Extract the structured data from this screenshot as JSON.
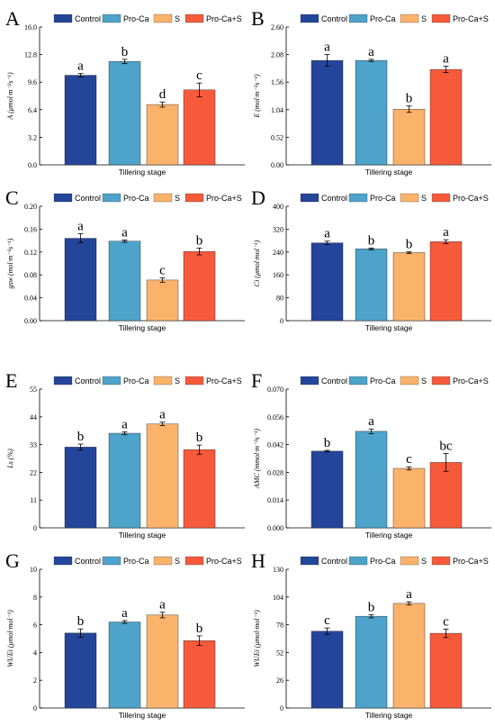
{
  "colors": {
    "Control": "#23459a",
    "Pro-Ca": "#4da3c9",
    "S": "#fbb36b",
    "Pro-Ca+S": "#f75a3a"
  },
  "chart_data": [
    {
      "type": "bar",
      "panel": "A",
      "categories": [
        "Tillering stage"
      ],
      "xlabel": "Tillering stage",
      "ylabel": "A (μmol·m⁻²s⁻¹)",
      "ylim": [
        0,
        16.0
      ],
      "yticks": [
        "0.0",
        "3.2",
        "6.4",
        "9.6",
        "12.8",
        "16.0"
      ],
      "series": [
        {
          "name": "Control",
          "values": [
            10.4
          ],
          "err": [
            0.2
          ],
          "sig": "a"
        },
        {
          "name": "Pro-Ca",
          "values": [
            12.0
          ],
          "err": [
            0.25
          ],
          "sig": "b"
        },
        {
          "name": "S",
          "values": [
            7.0
          ],
          "err": [
            0.3
          ],
          "sig": "d"
        },
        {
          "name": "Pro-Ca+S",
          "values": [
            8.7
          ],
          "err": [
            0.8
          ],
          "sig": "c"
        }
      ]
    },
    {
      "type": "bar",
      "panel": "B",
      "categories": [
        "Tillering stage"
      ],
      "xlabel": "Tillering stage",
      "ylabel": "E (mol·m⁻²s⁻¹)",
      "ylim": [
        0,
        2.6
      ],
      "yticks": [
        "0.00",
        "0.52",
        "1.04",
        "1.56",
        "2.08",
        "2.60"
      ],
      "series": [
        {
          "name": "Control",
          "values": [
            1.97
          ],
          "err": [
            0.11
          ],
          "sig": "a"
        },
        {
          "name": "Pro-Ca",
          "values": [
            1.97
          ],
          "err": [
            0.02
          ],
          "sig": "a"
        },
        {
          "name": "S",
          "values": [
            1.05
          ],
          "err": [
            0.06
          ],
          "sig": "b"
        },
        {
          "name": "Pro-Ca+S",
          "values": [
            1.8
          ],
          "err": [
            0.06
          ],
          "sig": "a"
        }
      ]
    },
    {
      "type": "bar",
      "panel": "C",
      "categories": [
        "Tillering stage"
      ],
      "xlabel": "Tillering stage",
      "ylabel": "gsw (mol·m⁻²s⁻¹)",
      "ylim": [
        0,
        0.2
      ],
      "yticks": [
        "0.00",
        "0.04",
        "0.08",
        "0.12",
        "0.16",
        "0.20"
      ],
      "series": [
        {
          "name": "Control",
          "values": [
            0.144
          ],
          "err": [
            0.008
          ],
          "sig": "a"
        },
        {
          "name": "Pro-Ca",
          "values": [
            0.139
          ],
          "err": [
            0.002
          ],
          "sig": "a"
        },
        {
          "name": "S",
          "values": [
            0.071
          ],
          "err": [
            0.004
          ],
          "sig": "c"
        },
        {
          "name": "Pro-Ca+S",
          "values": [
            0.121
          ],
          "err": [
            0.006
          ],
          "sig": "b"
        }
      ]
    },
    {
      "type": "bar",
      "panel": "D",
      "categories": [
        "Tillering stage"
      ],
      "xlabel": "Tillering stage",
      "ylabel": "Ci (μmol·mol⁻¹)",
      "ylim": [
        0,
        400
      ],
      "yticks": [
        "0",
        "80",
        "160",
        "240",
        "320",
        "400"
      ],
      "series": [
        {
          "name": "Control",
          "values": [
            272
          ],
          "err": [
            6
          ],
          "sig": "a"
        },
        {
          "name": "Pro-Ca",
          "values": [
            251
          ],
          "err": [
            3
          ],
          "sig": "b"
        },
        {
          "name": "S",
          "values": [
            238
          ],
          "err": [
            3
          ],
          "sig": "b"
        },
        {
          "name": "Pro-Ca+S",
          "values": [
            276
          ],
          "err": [
            7
          ],
          "sig": "a"
        }
      ]
    },
    {
      "type": "bar",
      "panel": "E",
      "categories": [
        "Tillering stage"
      ],
      "xlabel": "Tillering stage",
      "ylabel": "Ls (%)",
      "ylim": [
        0,
        55
      ],
      "yticks": [
        "0",
        "11",
        "22",
        "33",
        "44",
        "55"
      ],
      "series": [
        {
          "name": "Control",
          "values": [
            32.0
          ],
          "err": [
            1.2
          ],
          "sig": "b"
        },
        {
          "name": "Pro-Ca",
          "values": [
            37.5
          ],
          "err": [
            0.6
          ],
          "sig": "a"
        },
        {
          "name": "S",
          "values": [
            41.2
          ],
          "err": [
            0.7
          ],
          "sig": "a"
        },
        {
          "name": "Pro-Ca+S",
          "values": [
            31.0
          ],
          "err": [
            1.8
          ],
          "sig": "b"
        }
      ]
    },
    {
      "type": "bar",
      "panel": "F",
      "categories": [
        "Tillering stage"
      ],
      "xlabel": "Tillering stage",
      "ylabel": "AMC (mmol·m⁻²s⁻¹)",
      "ylim": [
        0,
        0.07
      ],
      "yticks": [
        "0.000",
        "0.014",
        "0.028",
        "0.042",
        "0.056",
        "0.070"
      ],
      "series": [
        {
          "name": "Control",
          "values": [
            0.0387
          ],
          "err": [
            0.0004
          ],
          "sig": "b"
        },
        {
          "name": "Pro-Ca",
          "values": [
            0.0487
          ],
          "err": [
            0.0012
          ],
          "sig": "a"
        },
        {
          "name": "S",
          "values": [
            0.03
          ],
          "err": [
            0.0008
          ],
          "sig": "c"
        },
        {
          "name": "Pro-Ca+S",
          "values": [
            0.033
          ],
          "err": [
            0.0045
          ],
          "sig": "bc"
        }
      ]
    },
    {
      "type": "bar",
      "panel": "G",
      "categories": [
        "Tillering stage"
      ],
      "xlabel": "Tillering stage",
      "ylabel": "WUEi (μmol·mol⁻¹)",
      "ylim": [
        0,
        10
      ],
      "yticks": [
        "0",
        "2",
        "4",
        "6",
        "8",
        "10"
      ],
      "series": [
        {
          "name": "Control",
          "values": [
            5.4
          ],
          "err": [
            0.3
          ],
          "sig": "b"
        },
        {
          "name": "Pro-Ca",
          "values": [
            6.2
          ],
          "err": [
            0.1
          ],
          "sig": "a"
        },
        {
          "name": "S",
          "values": [
            6.7
          ],
          "err": [
            0.2
          ],
          "sig": "a"
        },
        {
          "name": "Pro-Ca+S",
          "values": [
            4.85
          ],
          "err": [
            0.35
          ],
          "sig": "b"
        }
      ]
    },
    {
      "type": "bar",
      "panel": "H",
      "categories": [
        "Tillering stage"
      ],
      "xlabel": "Tillering stage",
      "ylabel": "WUEi (μmol·mol⁻¹)",
      "ylim": [
        0,
        130
      ],
      "yticks": [
        "0",
        "26",
        "52",
        "78",
        "104",
        "130"
      ],
      "series": [
        {
          "name": "Control",
          "values": [
            72
          ],
          "err": [
            3
          ],
          "sig": "c"
        },
        {
          "name": "Pro-Ca",
          "values": [
            86
          ],
          "err": [
            1.5
          ],
          "sig": "b"
        },
        {
          "name": "S",
          "values": [
            98
          ],
          "err": [
            1.5
          ],
          "sig": "a"
        },
        {
          "name": "Pro-Ca+S",
          "values": [
            70
          ],
          "err": [
            4
          ],
          "sig": "c"
        }
      ]
    }
  ]
}
